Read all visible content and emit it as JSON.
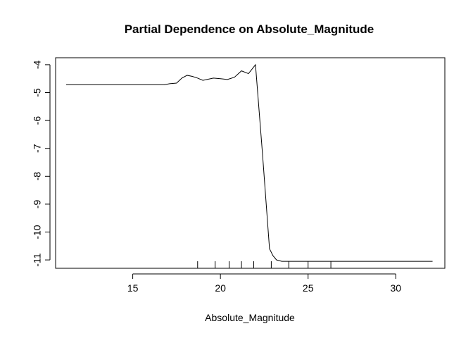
{
  "chart_data": {
    "type": "line",
    "title": "Partial Dependence on  Absolute_Magnitude",
    "xlabel": "Absolute_Magnitude",
    "ylabel": "",
    "xlim": [
      10.6,
      32.8
    ],
    "ylim": [
      -11.3,
      -3.75
    ],
    "xticks": [
      15,
      20,
      25,
      30
    ],
    "yticks": [
      -4,
      -5,
      -6,
      -7,
      -8,
      -9,
      -10,
      -11
    ],
    "x": [
      11.2,
      12.0,
      13.0,
      14.0,
      15.0,
      16.0,
      16.8,
      17.1,
      17.5,
      17.8,
      18.1,
      18.4,
      18.7,
      19.0,
      19.3,
      19.6,
      20.0,
      20.4,
      20.8,
      21.2,
      21.6,
      22.0,
      22.4,
      22.8,
      23.0,
      23.2,
      23.5,
      24.0,
      25.0,
      26.0,
      27.0,
      28.0,
      29.0,
      30.0,
      31.0,
      32.1
    ],
    "y": [
      -4.72,
      -4.72,
      -4.72,
      -4.72,
      -4.72,
      -4.72,
      -4.72,
      -4.68,
      -4.66,
      -4.48,
      -4.38,
      -4.42,
      -4.48,
      -4.56,
      -4.52,
      -4.48,
      -4.5,
      -4.53,
      -4.45,
      -4.22,
      -4.32,
      -4.0,
      -7.2,
      -10.6,
      -10.85,
      -11.0,
      -11.05,
      -11.05,
      -11.05,
      -11.05,
      -11.05,
      -11.05,
      -11.05,
      -11.05,
      -11.05,
      -11.05
    ],
    "rug": [
      18.7,
      19.7,
      20.5,
      21.2,
      21.9,
      22.9,
      23.9,
      25.0,
      26.3
    ],
    "grid": false,
    "line_color": "#000000"
  }
}
